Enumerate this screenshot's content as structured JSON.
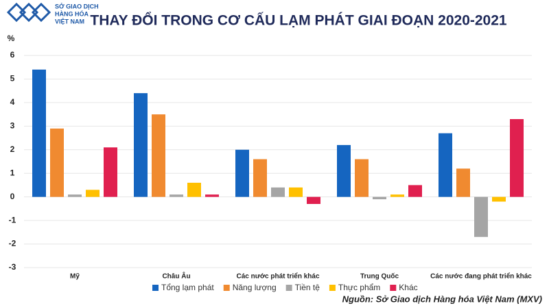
{
  "logo": {
    "lines": [
      "SỞ GIAO DỊCH",
      "HÀNG HÓA",
      "VIỆT NAM"
    ]
  },
  "chart_data": {
    "type": "bar",
    "title": "THAY ĐỔI TRONG CƠ CẤU LẠM PHÁT GIAI ĐOẠN 2020-2021",
    "y_unit": "%",
    "source": "Nguồn: Sở Giao dịch Hàng hóa Việt Nam (MXV)",
    "categories": [
      "Mỹ",
      "Châu Âu",
      "Các nước phát triển khác",
      "Trung Quốc",
      "Các nước đang phát triển khác"
    ],
    "series": [
      {
        "name": "Tổng lạm phát",
        "color": "#1565c0",
        "values": [
          5.4,
          4.4,
          2.0,
          2.2,
          2.7
        ]
      },
      {
        "name": "Năng lượng",
        "color": "#f08a30",
        "values": [
          2.9,
          3.5,
          1.6,
          1.6,
          1.2
        ]
      },
      {
        "name": "Tiền tệ",
        "color": "#a5a5a5",
        "values": [
          0.1,
          0.1,
          0.4,
          -0.1,
          -1.7
        ]
      },
      {
        "name": "Thực phẩm",
        "color": "#ffc000",
        "values": [
          0.3,
          0.6,
          0.4,
          0.1,
          -0.2
        ]
      },
      {
        "name": "Khác",
        "color": "#e0204f",
        "values": [
          2.1,
          0.1,
          -0.3,
          0.5,
          3.3
        ]
      }
    ],
    "ylim": [
      -3,
      6
    ],
    "yticks": [
      -3,
      -2,
      -1,
      0,
      1,
      2,
      3,
      4,
      5,
      6
    ],
    "grid": true
  }
}
